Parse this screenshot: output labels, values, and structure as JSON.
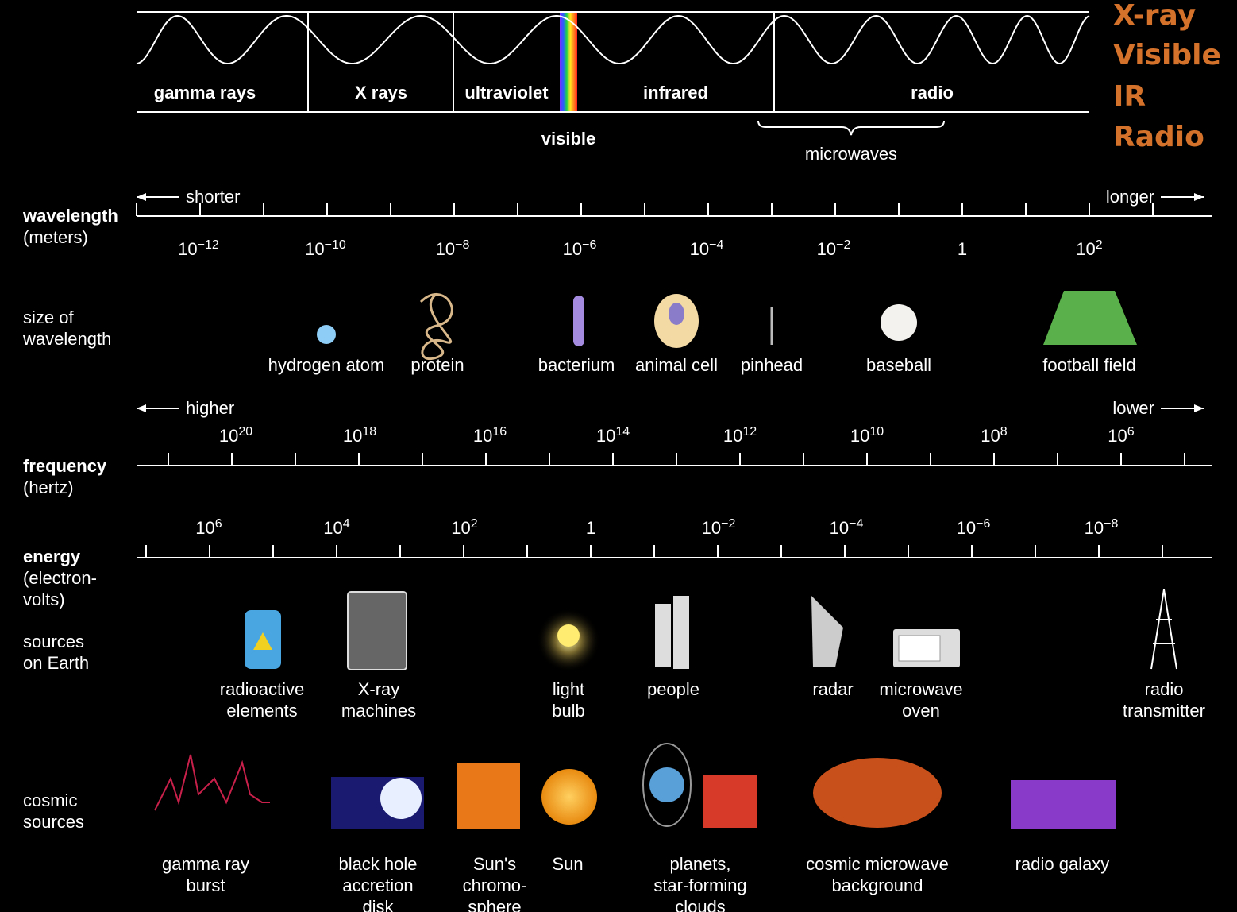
{
  "spectrum": {
    "bands": [
      "gamma rays",
      "X rays",
      "ultraviolet",
      "infrared",
      "radio"
    ],
    "visible": "visible",
    "microwaves": "microwaves"
  },
  "highlight_list": [
    "X-ray",
    "Visible",
    "IR",
    "Radio"
  ],
  "wavelength": {
    "label": "wavelength",
    "unit": "(meters)",
    "left": "shorter",
    "right": "longer",
    "ticks": [
      {
        "base": "10",
        "exp": "−12"
      },
      {
        "base": "10",
        "exp": "−10"
      },
      {
        "base": "10",
        "exp": "−8"
      },
      {
        "base": "10",
        "exp": "−6"
      },
      {
        "base": "10",
        "exp": "−4"
      },
      {
        "base": "10",
        "exp": "−2"
      },
      {
        "base": "1"
      },
      {
        "base": "10",
        "exp": "2"
      }
    ]
  },
  "size": {
    "label": [
      "size of",
      "wavelength"
    ],
    "items": [
      "hydrogen atom",
      "protein",
      "bacterium",
      "animal cell",
      "pinhead",
      "baseball",
      "football field"
    ]
  },
  "frequency": {
    "label": "frequency",
    "unit": "(hertz)",
    "left": "higher",
    "right": "lower",
    "ticks": [
      {
        "base": "10",
        "exp": "20"
      },
      {
        "base": "10",
        "exp": "18"
      },
      {
        "base": "10",
        "exp": "16"
      },
      {
        "base": "10",
        "exp": "14"
      },
      {
        "base": "10",
        "exp": "12"
      },
      {
        "base": "10",
        "exp": "10"
      },
      {
        "base": "10",
        "exp": "8"
      },
      {
        "base": "10",
        "exp": "6"
      }
    ]
  },
  "energy": {
    "label": "energy",
    "unit": [
      "(electron-",
      "volts)"
    ],
    "ticks": [
      {
        "base": "10",
        "exp": "6"
      },
      {
        "base": "10",
        "exp": "4"
      },
      {
        "base": "10",
        "exp": "2"
      },
      {
        "base": "1"
      },
      {
        "base": "10",
        "exp": "−2"
      },
      {
        "base": "10",
        "exp": "−4"
      },
      {
        "base": "10",
        "exp": "−6"
      },
      {
        "base": "10",
        "exp": "−8"
      }
    ]
  },
  "earth_sources": {
    "label": [
      "sources",
      "on Earth"
    ],
    "items": [
      [
        "radioactive",
        "elements"
      ],
      [
        "X-ray",
        "machines"
      ],
      [
        "light",
        "bulb"
      ],
      [
        "people"
      ],
      [
        "radar"
      ],
      [
        "microwave",
        "oven"
      ],
      [
        "radio",
        "transmitter"
      ]
    ]
  },
  "cosmic_sources": {
    "label": [
      "cosmic",
      "sources"
    ],
    "items": [
      [
        "gamma ray",
        "burst"
      ],
      [
        "black hole",
        "accretion",
        "disk"
      ],
      [
        "Sun's",
        "chromo-",
        "sphere"
      ],
      [
        "Sun"
      ],
      [
        "planets,",
        "star-forming",
        "clouds"
      ],
      [
        "cosmic microwave",
        "background"
      ],
      [
        "radio galaxy"
      ]
    ]
  }
}
